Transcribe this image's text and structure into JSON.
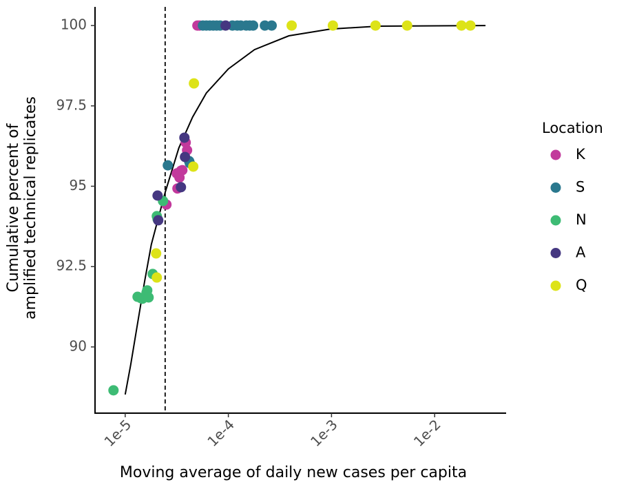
{
  "chart_data": {
    "type": "scatter",
    "x_label": "Moving average of daily new cases per capita",
    "y_label": [
      "Cumulative percent of",
      "amplified technical replicates"
    ],
    "legend_title": "Location",
    "legend": "right",
    "xscale": "log",
    "xlim": [
      5.1e-06,
      0.0493
    ],
    "ylim": [
      87.94,
      100.58
    ],
    "xticks": [
      {
        "value": 1e-05,
        "label": "1e-5"
      },
      {
        "value": 0.0001,
        "label": "1e-4"
      },
      {
        "value": 0.001,
        "label": "1e-3"
      },
      {
        "value": 0.01,
        "label": "1e-2"
      }
    ],
    "yticks": [
      90,
      92.5,
      95,
      97.5,
      100
    ],
    "vline": 2.44e-05,
    "fit": {
      "x": [
        1e-05,
        1.13e-05,
        1.318e-05,
        1.537e-05,
        1.792e-05,
        2.436e-05,
        3.311e-05,
        4.5e-05,
        6.12e-05,
        0.0001,
        0.0001792,
        0.000386,
        0.00097,
        0.00284,
        0.0311
      ],
      "y": [
        88.52,
        89.44,
        90.73,
        92.01,
        93.19,
        94.8,
        96.19,
        97.15,
        97.9,
        98.65,
        99.25,
        99.68,
        99.89,
        99.98,
        100
      ]
    },
    "series": [
      {
        "name": "K",
        "color": "#c2399c",
        "x": [
          5.01e-05,
          5.25e-05,
          2.51e-05,
          3.21e-05,
          3.36e-05,
          3.47e-05,
          3.16e-05,
          3.58e-05,
          3.98e-05,
          3.86e-05
        ],
        "values": [
          100,
          100,
          94.43,
          94.93,
          95.27,
          95.48,
          95.4,
          95.5,
          96.12,
          96.36
        ]
      },
      {
        "name": "S",
        "color": "#2a788e",
        "x": [
          5.67e-05,
          6.12e-05,
          6.61e-05,
          7.14e-05,
          7.7e-05,
          8.32e-05,
          0.0001096,
          0.000122,
          0.0001318,
          0.000149,
          0.000161,
          0.0001738,
          0.000226,
          0.000263,
          2.59e-05,
          4.17e-05,
          4.23e-05
        ],
        "values": [
          100,
          100,
          100,
          100,
          100,
          100,
          100,
          100,
          100,
          100,
          100,
          100,
          100,
          100,
          95.65,
          95.78,
          95.72
        ]
      },
      {
        "name": "N",
        "color": "#3dbb74",
        "x": [
          7.7e-06,
          1.318e-05,
          1.42e-05,
          1.468e-05,
          1.61e-05,
          1.636e-05,
          1.686e-05,
          1.848e-05,
          2.026e-05,
          2.06e-05,
          2.326e-05
        ],
        "values": [
          88.65,
          91.56,
          91.52,
          91.5,
          91.69,
          91.76,
          91.54,
          92.27,
          94.07,
          93.98,
          94.54
        ]
      },
      {
        "name": "A",
        "color": "#453781",
        "x": [
          3.75e-05,
          3.8e-05,
          2.06e-05,
          2.09e-05,
          3.47e-05,
          9.4e-05
        ],
        "values": [
          96.51,
          95.91,
          94.71,
          93.94,
          94.97,
          100
        ]
      },
      {
        "name": "Q",
        "color": "#dde318",
        "x": [
          0.000411,
          0.001031,
          0.00267,
          0.00541,
          0.0182,
          0.0222,
          4.64e-05,
          4.57e-05,
          1.995e-05,
          2.026e-05
        ],
        "values": [
          100,
          100,
          100,
          100,
          100,
          100,
          98.2,
          95.61,
          92.91,
          92.16
        ]
      }
    ]
  }
}
